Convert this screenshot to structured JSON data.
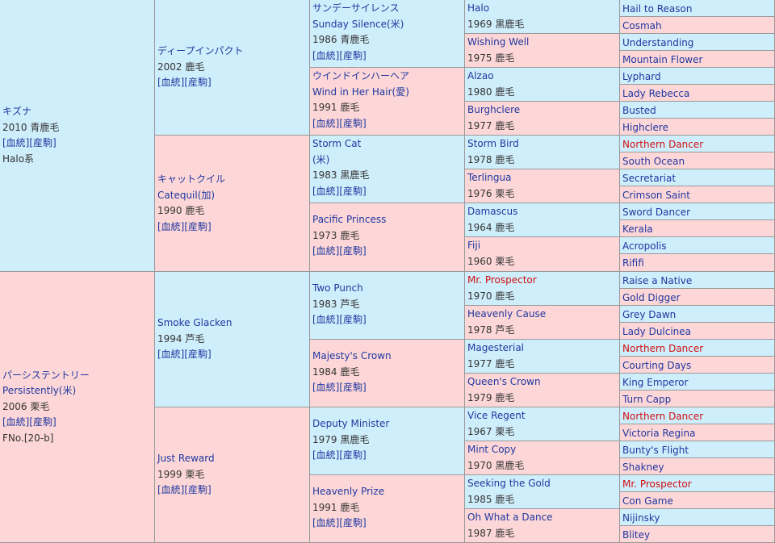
{
  "pedigree": {
    "gen1": [
      {
        "name": "キズナ",
        "info": "2010 青鹿毛",
        "links": "[血統][産駒]",
        "extra": "Halo系",
        "sex": "male"
      },
      {
        "name": "パーシステントリー",
        "name2": "Persistently(米)",
        "info": "2006 栗毛",
        "links": "[血統][産駒]",
        "extra": "FNo.[20-b]",
        "sex": "female"
      }
    ],
    "gen2": [
      {
        "name": "ディープインパクト",
        "info": "2002 鹿毛",
        "links": "[血統][産駒]",
        "sex": "male"
      },
      {
        "name": "キャットクイル",
        "name2": "Catequil(加)",
        "info": "1990 鹿毛",
        "links": "[血統][産駒]",
        "sex": "female"
      },
      {
        "name": "Smoke Glacken",
        "info": "1994 芦毛",
        "links": "[血統][産駒]",
        "sex": "male"
      },
      {
        "name": "Just Reward",
        "info": "1999 栗毛",
        "links": "[血統][産駒]",
        "sex": "female"
      }
    ],
    "gen3": [
      {
        "name": "サンデーサイレンス",
        "name2": "Sunday Silence(米)",
        "info": "1986 青鹿毛",
        "links": "[血統][産駒]",
        "sex": "male"
      },
      {
        "name": "ウインドインハーヘア",
        "name2": "Wind in Her Hair(愛)",
        "info": "1991 鹿毛",
        "links": "[血統][産駒]",
        "sex": "female"
      },
      {
        "name": "Storm Cat",
        "name2": "(米)",
        "info": "1983 黒鹿毛",
        "links": "[血統][産駒]",
        "sex": "male"
      },
      {
        "name": "Pacific Princess",
        "info": "1973 鹿毛",
        "links": "[血統][産駒]",
        "sex": "female"
      },
      {
        "name": "Two Punch",
        "info": "1983 芦毛",
        "links": "[血統][産駒]",
        "sex": "male"
      },
      {
        "name": "Majesty's Crown",
        "info": "1984 鹿毛",
        "links": "[血統][産駒]",
        "sex": "female"
      },
      {
        "name": "Deputy Minister",
        "info": "1979 黒鹿毛",
        "links": "[血統][産駒]",
        "sex": "male"
      },
      {
        "name": "Heavenly Prize",
        "info": "1991 鹿毛",
        "links": "[血統][産駒]",
        "sex": "female"
      }
    ],
    "gen4": [
      {
        "name": "Halo",
        "info": "1969 黒鹿毛",
        "sex": "male",
        "red": false
      },
      {
        "name": "Wishing Well",
        "info": "1975 鹿毛",
        "sex": "female",
        "red": false
      },
      {
        "name": "Alzao",
        "info": "1980 鹿毛",
        "sex": "male",
        "red": false
      },
      {
        "name": "Burghclere",
        "info": "1977 鹿毛",
        "sex": "female",
        "red": false
      },
      {
        "name": "Storm Bird",
        "info": "1978 鹿毛",
        "sex": "male",
        "red": false
      },
      {
        "name": "Terlingua",
        "info": "1976 栗毛",
        "sex": "female",
        "red": false
      },
      {
        "name": "Damascus",
        "info": "1964 鹿毛",
        "sex": "male",
        "red": false
      },
      {
        "name": "Fiji",
        "info": "1960 栗毛",
        "sex": "female",
        "red": false
      },
      {
        "name": "Mr. Prospector",
        "info": "1970 鹿毛",
        "sex": "male",
        "red": true
      },
      {
        "name": "Heavenly Cause",
        "info": "1978 芦毛",
        "sex": "female",
        "red": false
      },
      {
        "name": "Magesterial",
        "info": "1977 鹿毛",
        "sex": "male",
        "red": false
      },
      {
        "name": "Queen's Crown",
        "info": "1979 鹿毛",
        "sex": "female",
        "red": false
      },
      {
        "name": "Vice Regent",
        "info": "1967 栗毛",
        "sex": "male",
        "red": false
      },
      {
        "name": "Mint Copy",
        "info": "1970 黒鹿毛",
        "sex": "female",
        "red": false
      },
      {
        "name": "Seeking the Gold",
        "info": "1985 鹿毛",
        "sex": "male",
        "red": false
      },
      {
        "name": "Oh What a Dance",
        "info": "1987 鹿毛",
        "sex": "female",
        "red": false
      }
    ],
    "gen5": [
      {
        "name": "Hail to Reason",
        "sex": "male",
        "red": false
      },
      {
        "name": "Cosmah",
        "sex": "female",
        "red": false
      },
      {
        "name": "Understanding",
        "sex": "male",
        "red": false
      },
      {
        "name": "Mountain Flower",
        "sex": "female",
        "red": false
      },
      {
        "name": "Lyphard",
        "sex": "male",
        "red": false
      },
      {
        "name": "Lady Rebecca",
        "sex": "female",
        "red": false
      },
      {
        "name": "Busted",
        "sex": "male",
        "red": false
      },
      {
        "name": "Highclere",
        "sex": "female",
        "red": false
      },
      {
        "name": "Northern Dancer",
        "sex": "male",
        "red": true
      },
      {
        "name": "South Ocean",
        "sex": "female",
        "red": false
      },
      {
        "name": "Secretariat",
        "sex": "male",
        "red": false
      },
      {
        "name": "Crimson Saint",
        "sex": "female",
        "red": false
      },
      {
        "name": "Sword Dancer",
        "sex": "male",
        "red": false
      },
      {
        "name": "Kerala",
        "sex": "female",
        "red": false
      },
      {
        "name": "Acropolis",
        "sex": "male",
        "red": false
      },
      {
        "name": "Rififi",
        "sex": "female",
        "red": false
      },
      {
        "name": "Raise a Native",
        "sex": "male",
        "red": false
      },
      {
        "name": "Gold Digger",
        "sex": "female",
        "red": false
      },
      {
        "name": "Grey Dawn",
        "sex": "male",
        "red": false
      },
      {
        "name": "Lady Dulcinea",
        "sex": "female",
        "red": false
      },
      {
        "name": "Northern Dancer",
        "sex": "male",
        "red": true
      },
      {
        "name": "Courting Days",
        "sex": "female",
        "red": false
      },
      {
        "name": "King Emperor",
        "sex": "male",
        "red": false
      },
      {
        "name": "Turn Capp",
        "sex": "female",
        "red": false
      },
      {
        "name": "Northern Dancer",
        "sex": "male",
        "red": true
      },
      {
        "name": "Victoria Regina",
        "sex": "female",
        "red": false
      },
      {
        "name": "Bunty's Flight",
        "sex": "male",
        "red": false
      },
      {
        "name": "Shakney",
        "sex": "female",
        "red": false
      },
      {
        "name": "Mr. Prospector",
        "sex": "male",
        "red": true
      },
      {
        "name": "Con Game",
        "sex": "female",
        "red": false
      },
      {
        "name": "Nijinsky",
        "sex": "male",
        "red": false
      },
      {
        "name": "Blitey",
        "sex": "female",
        "red": false
      }
    ]
  },
  "colors": {
    "male_bg": "#cfeefb",
    "female_bg": "#fdd7d7",
    "link": "#1f37a0",
    "red_link": "#d01010",
    "border": "#9a9a9a"
  }
}
